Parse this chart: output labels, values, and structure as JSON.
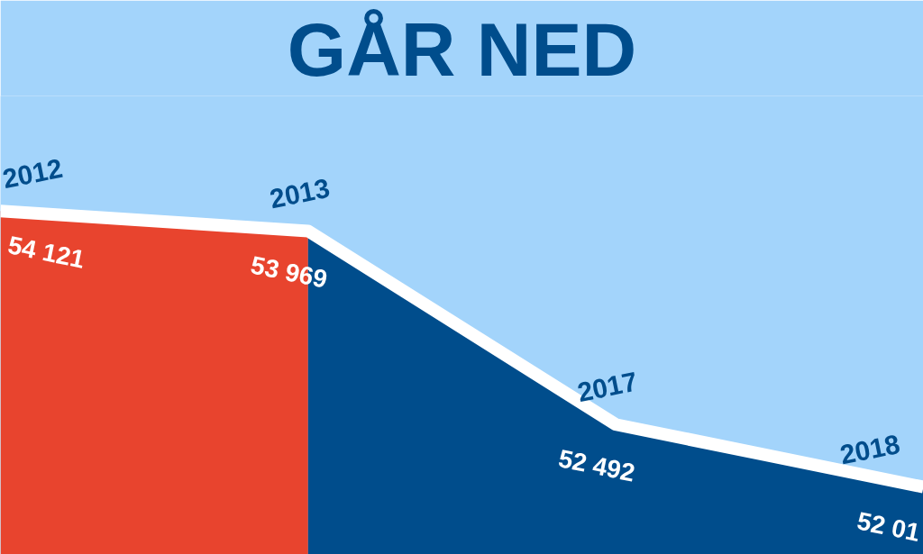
{
  "chart_data": {
    "type": "area",
    "title": "GÅR NED",
    "categories": [
      "2012",
      "2013",
      "2017",
      "2018"
    ],
    "series": [
      {
        "color": "#e8442e",
        "values": [
          54121,
          53969,
          null,
          null
        ]
      },
      {
        "color": "#004d8c",
        "values": [
          null,
          53969,
          52492,
          52015
        ]
      },
      {
        "type": "line",
        "color": "#ffffff",
        "values": [
          54121,
          53969,
          52492,
          52015
        ],
        "value_labels": [
          "54 121",
          "53 969",
          "52 492",
          null
        ]
      }
    ],
    "annotations": [
      "52 01"
    ],
    "ylim": [
      51500,
      55000
    ],
    "tick_labels": false,
    "grid": false
  }
}
